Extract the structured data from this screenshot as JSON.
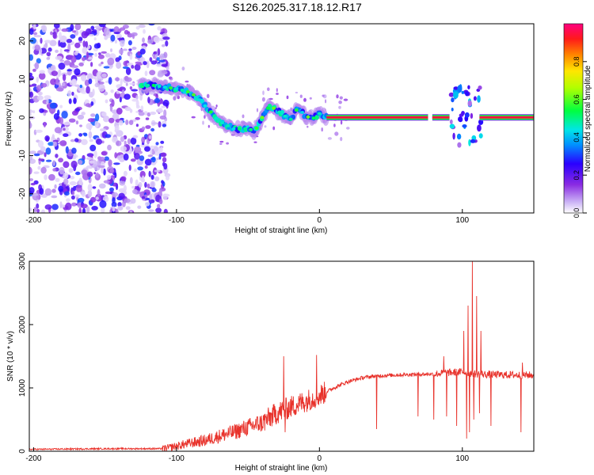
{
  "figure": {
    "title": "S126.2025.317.18.12.R17"
  },
  "chart_data": [
    {
      "type": "heatmap",
      "title": "S126.2025.317.18.12.R17",
      "xlabel": "Height of straight line (km)",
      "ylabel": "Frequency (Hz)",
      "xlim": [
        -203,
        150
      ],
      "ylim": [
        -25,
        24.5
      ],
      "x_ticks": [
        -200,
        -100,
        0,
        100
      ],
      "y_ticks": [
        -20,
        -10,
        0,
        10,
        20
      ],
      "colorbar": {
        "label": "Normalized spectral amplitude",
        "range": [
          0,
          1
        ],
        "ticks": [
          0.0,
          0.2,
          0.4,
          0.6,
          0.8
        ]
      },
      "ridge": {
        "x": [
          -125,
          -118,
          -110,
          -100,
          -95,
          -90,
          -85,
          -80,
          -75,
          -70,
          -65,
          -60,
          -55,
          -50,
          -45,
          -40,
          -35,
          -30,
          -25,
          -20,
          -15,
          -10,
          -5,
          0,
          5,
          40,
          80,
          95,
          100,
          105,
          110,
          150
        ],
        "y": [
          8,
          8.5,
          8,
          7.5,
          7,
          6.5,
          5,
          3,
          1,
          -1,
          -2,
          -3,
          -3,
          -3,
          -3.5,
          0,
          3,
          2,
          0.5,
          -0.5,
          2.5,
          0.5,
          -0.5,
          1,
          0,
          0,
          0,
          0,
          0,
          1,
          0,
          0
        ]
      },
      "noise_region_x": [
        -203,
        -110
      ]
    },
    {
      "type": "line",
      "xlabel": "Height of straight line (km)",
      "ylabel": "SNR (10 * v/v)",
      "xlim": [
        -203,
        150
      ],
      "ylim": [
        0,
        3000
      ],
      "x_ticks": [
        -200,
        -100,
        0,
        100
      ],
      "y_ticks": [
        0,
        1000,
        2000,
        3000
      ],
      "line_color": "#e8322b",
      "envelope": {
        "x": [
          -203,
          -150,
          -110,
          -100,
          -90,
          -80,
          -70,
          -60,
          -50,
          -40,
          -30,
          -20,
          -10,
          0,
          10,
          20,
          30,
          40,
          60,
          80,
          90,
          100,
          110,
          120,
          150
        ],
        "y": [
          30,
          40,
          40,
          80,
          130,
          170,
          240,
          300,
          380,
          450,
          600,
          700,
          790,
          880,
          1000,
          1100,
          1160,
          1190,
          1210,
          1220,
          1240,
          1250,
          1220,
          1210,
          1200
        ]
      },
      "spikes": [
        {
          "x": -25,
          "y": 1500
        },
        {
          "x": -24,
          "y": 300
        },
        {
          "x": -2,
          "y": 1520
        },
        {
          "x": 0,
          "y": 900
        },
        {
          "x": 40,
          "y": 350
        },
        {
          "x": 69,
          "y": 550
        },
        {
          "x": 80,
          "y": 500
        },
        {
          "x": 87,
          "y": 1500
        },
        {
          "x": 89,
          "y": 550
        },
        {
          "x": 96,
          "y": 400
        },
        {
          "x": 99,
          "y": 1300
        },
        {
          "x": 101,
          "y": 1900
        },
        {
          "x": 103,
          "y": 200
        },
        {
          "x": 104,
          "y": 2300
        },
        {
          "x": 105,
          "y": 300
        },
        {
          "x": 107,
          "y": 3000
        },
        {
          "x": 108,
          "y": 500
        },
        {
          "x": 110,
          "y": 2450
        },
        {
          "x": 112,
          "y": 600
        },
        {
          "x": 113,
          "y": 1900
        },
        {
          "x": 120,
          "y": 400
        },
        {
          "x": 141,
          "y": 300
        },
        {
          "x": 142,
          "y": 1400
        }
      ]
    }
  ]
}
